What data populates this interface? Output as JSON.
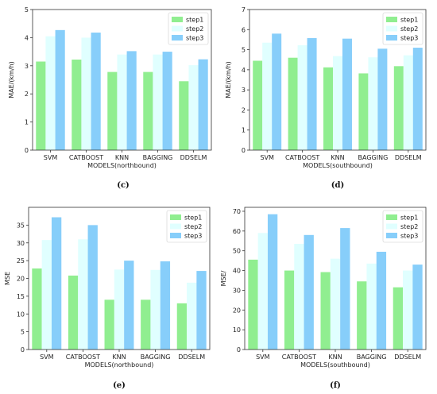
{
  "colors": {
    "step1": "#90ee90",
    "step2": "#e0ffff",
    "step3": "#87cefa"
  },
  "chart_data": [
    {
      "panel": "(c)",
      "type": "bar",
      "categories": [
        "SVM",
        "CATBOOST",
        "KNN",
        "BAGGING",
        "DDSELM"
      ],
      "series": [
        {
          "name": "step1",
          "values": [
            3.15,
            3.22,
            2.78,
            2.78,
            2.45
          ]
        },
        {
          "name": "step2",
          "values": [
            4.05,
            4.0,
            3.4,
            3.4,
            3.02
          ]
        },
        {
          "name": "step3",
          "values": [
            4.27,
            4.18,
            3.52,
            3.5,
            3.23
          ]
        }
      ],
      "xlabel": "MODELS(northbound)",
      "ylabel": "MAE/(km/h)",
      "ylim": [
        0,
        5
      ],
      "yticks": [
        0,
        1,
        2,
        3,
        4,
        5
      ],
      "legend": "top-right"
    },
    {
      "panel": "(d)",
      "type": "bar",
      "categories": [
        "SVM",
        "CATBOOST",
        "KNN",
        "BAGGING",
        "DDSELM"
      ],
      "series": [
        {
          "name": "step1",
          "values": [
            4.45,
            4.6,
            4.12,
            3.82,
            4.18
          ]
        },
        {
          "name": "step2",
          "values": [
            5.35,
            5.22,
            4.68,
            4.62,
            4.72
          ]
        },
        {
          "name": "step3",
          "values": [
            5.8,
            5.58,
            5.55,
            5.05,
            5.1
          ]
        }
      ],
      "xlabel": "MODELS(southbound)",
      "ylabel": "MAE/(km/h)",
      "ylim": [
        0,
        7
      ],
      "yticks": [
        0,
        1,
        2,
        3,
        4,
        5,
        6,
        7
      ],
      "legend": "top-right"
    },
    {
      "panel": "(e)",
      "type": "bar",
      "categories": [
        "SVM",
        "CATBOOST",
        "KNN",
        "BAGGING",
        "DDSELM"
      ],
      "series": [
        {
          "name": "step1",
          "values": [
            22.8,
            20.8,
            14.0,
            14.0,
            13.0
          ]
        },
        {
          "name": "step2",
          "values": [
            30.8,
            31.0,
            22.5,
            22.4,
            18.8
          ]
        },
        {
          "name": "step3",
          "values": [
            37.2,
            35.0,
            25.0,
            24.8,
            22.1
          ]
        }
      ],
      "xlabel": "MODELS(northbound)",
      "ylabel": "MSE",
      "ylim": [
        0,
        40
      ],
      "yticks": [
        0,
        5,
        10,
        15,
        20,
        25,
        30,
        35
      ],
      "legend": "top-right"
    },
    {
      "panel": "(f)",
      "type": "bar",
      "categories": [
        "SVM",
        "CATBOOST",
        "KNN",
        "BAGGING",
        "DDSELM"
      ],
      "series": [
        {
          "name": "step1",
          "values": [
            45.5,
            40.0,
            39.2,
            34.5,
            31.5
          ]
        },
        {
          "name": "step2",
          "values": [
            59.0,
            53.5,
            46.0,
            43.5,
            40.0
          ]
        },
        {
          "name": "step3",
          "values": [
            68.5,
            58.0,
            61.5,
            49.5,
            43.0
          ]
        }
      ],
      "xlabel": "MODELS(southbound)",
      "ylabel": "MSE/",
      "ylim": [
        0,
        72
      ],
      "yticks": [
        0,
        10,
        20,
        30,
        40,
        50,
        60,
        70
      ],
      "legend": "top-right"
    }
  ]
}
